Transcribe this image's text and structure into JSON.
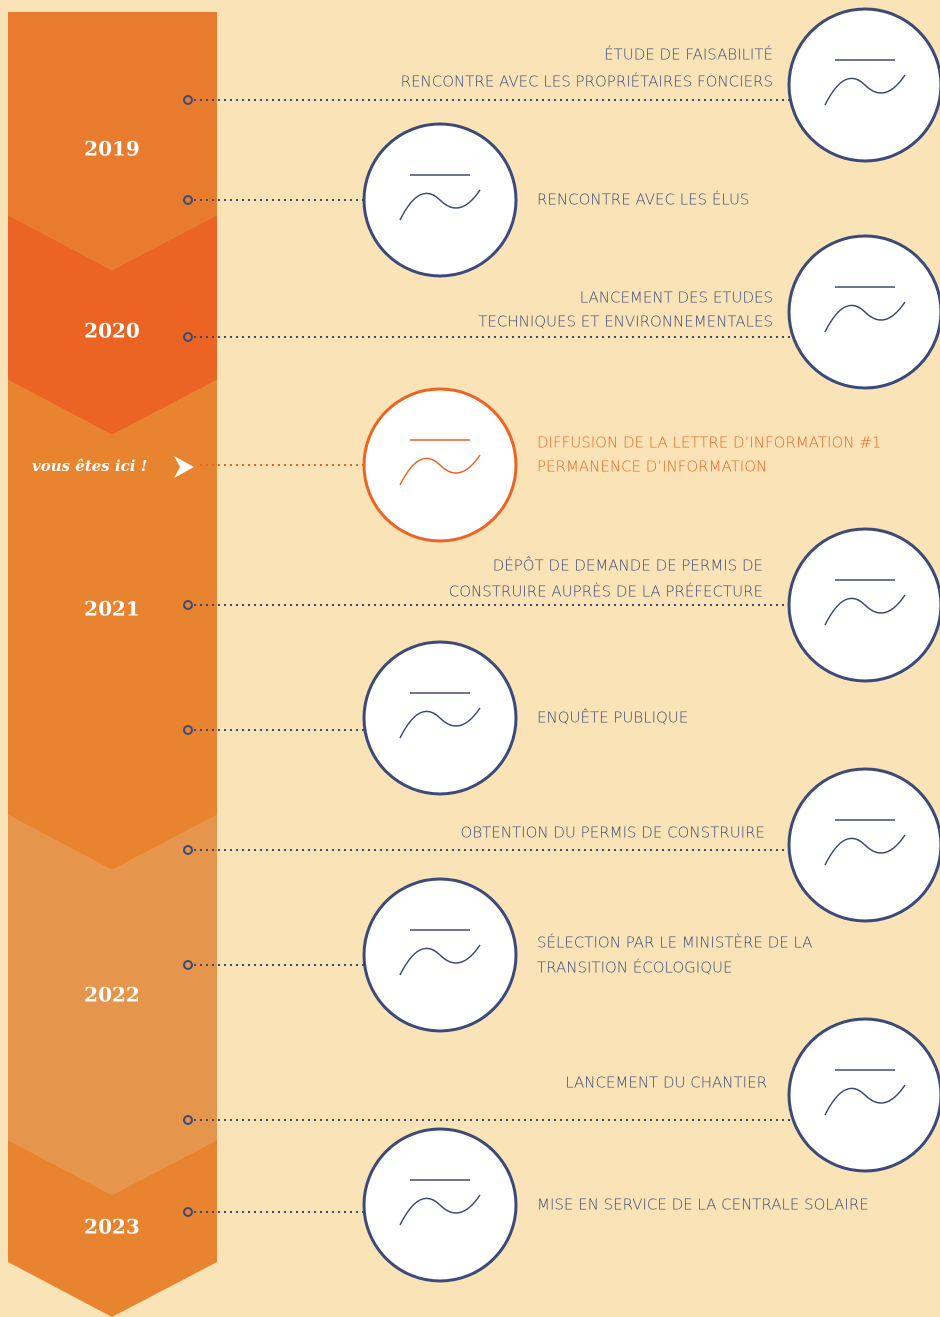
{
  "years": [
    {
      "label": "2019",
      "color": "#e87b2e"
    },
    {
      "label": "2020",
      "color": "#ec6424"
    },
    {
      "label": "2021",
      "color": "#e8832f"
    },
    {
      "label": "2022",
      "color": "#e5954c"
    },
    {
      "label": "2023",
      "color": "#e8832f"
    }
  ],
  "marker": "vous êtes ici !",
  "events": [
    {
      "lines": [
        "ÉTUDE DE FAISABILITÉ",
        "RENCONTRE AVEC LES PROPRIÉTAIRES FONCIERS"
      ]
    },
    {
      "lines": [
        "RENCONTRE AVEC LES ÉLUS"
      ]
    },
    {
      "lines": [
        "LANCEMENT DES ETUDES",
        "TECHNIQUES ET ENVIRONNEMENTALES"
      ]
    },
    {
      "lines": [
        "DIFFUSION DE LA LETTRE D’INFORMATION #1",
        "PERMANENCE D’INFORMATION"
      ]
    },
    {
      "lines": [
        "DÉPÔT DE DEMANDE DE PERMIS DE",
        "CONSTRUIRE AUPRÈS DE LA PRÉFECTURE"
      ]
    },
    {
      "lines": [
        "ENQUÊTE PUBLIQUE"
      ]
    },
    {
      "lines": [
        "OBTENTION DU PERMIS DE CONSTRUIRE"
      ]
    },
    {
      "lines": [
        "SÉLECTION PAR LE MINISTÈRE DE LA",
        "TRANSITION ÉCOLOGIQUE"
      ]
    },
    {
      "lines": [
        "LANCEMENT DU CHANTIER"
      ]
    },
    {
      "lines": [
        "MISE EN SERVICE DE LA CENTRALE SOLAIRE"
      ]
    }
  ]
}
